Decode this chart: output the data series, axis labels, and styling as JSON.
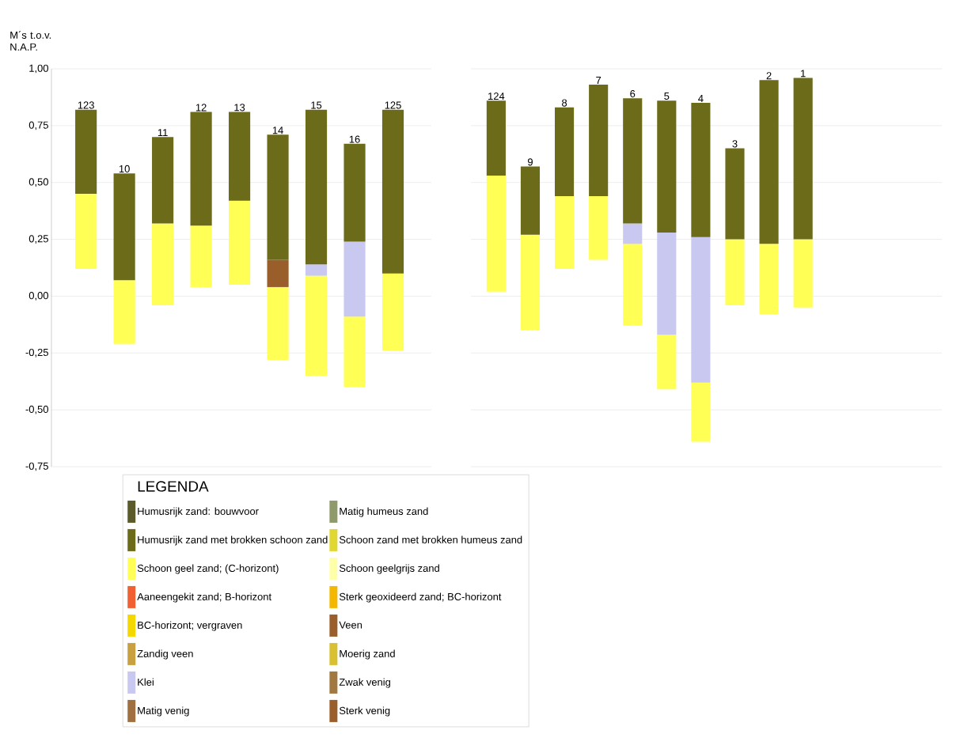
{
  "chart_data": [
    {
      "type": "bar",
      "ylabel": "M´s t.o.v. N.A.P.",
      "legend_title": "LEGENDA",
      "legend": "bottom",
      "grid": "y",
      "categories": [
        "123",
        "10",
        "11",
        "12",
        "13",
        "14",
        "15",
        "16",
        "125"
      ],
      "ylim": [
        -0.75,
        1.0
      ],
      "yticks": [
        {
          "value": 1.0,
          "label": "1,00"
        },
        {
          "value": 0.75,
          "label": "0,75"
        },
        {
          "value": 0.5,
          "label": "0,50"
        },
        {
          "value": 0.25,
          "label": "0,25"
        },
        {
          "value": 0.0,
          "label": "0,00"
        },
        {
          "value": -0.25,
          "label": "-0,25"
        },
        {
          "value": -0.5,
          "label": "-0,50"
        },
        {
          "value": -0.75,
          "label": "-0,75"
        }
      ],
      "series": [
        {
          "name": "Schoon geel zand; (C-horizont)",
          "color": "#ffff55",
          "base": [
            0.12,
            -0.21,
            -0.04,
            0.04,
            0.05,
            -0.28,
            -0.35,
            -0.4,
            -0.24
          ],
          "values": [
            0.33,
            0.28,
            0.36,
            0.27,
            0.37,
            0.32,
            0.44,
            0.31,
            0.34
          ]
        },
        {
          "name": "Klei",
          "color": "#c8c8f0",
          "base": [
            null,
            null,
            null,
            null,
            null,
            null,
            0.09,
            -0.09,
            null
          ],
          "values": [
            null,
            null,
            null,
            null,
            null,
            null,
            0.05,
            0.33,
            null
          ]
        },
        {
          "name": "Veen",
          "color": "#9a5e2a",
          "base": [
            null,
            null,
            null,
            null,
            null,
            0.04,
            null,
            null,
            null
          ],
          "values": [
            null,
            null,
            null,
            null,
            null,
            0.12,
            null,
            null,
            null
          ]
        },
        {
          "name": "Humusrijk zand met brokken schoon zand",
          "color": "#6b6b1a",
          "base": [
            0.45,
            0.07,
            0.32,
            0.31,
            0.42,
            0.16,
            0.14,
            0.24,
            0.1
          ],
          "values": [
            0.37,
            0.47,
            0.38,
            0.5,
            0.39,
            0.55,
            0.68,
            0.43,
            0.72
          ]
        },
        {
          "name": "Humusrijk zand: bouwvoor",
          "color": "#5a5a2a",
          "values": [
            null,
            null,
            null,
            null,
            null,
            null,
            null,
            null,
            null
          ]
        },
        {
          "name": "Matig humeus zand",
          "color": "#8f9a6a",
          "values": [
            null,
            null,
            null,
            null,
            null,
            null,
            null,
            null,
            null
          ]
        },
        {
          "name": "Schoon zand met brokken humeus zand",
          "color": "#e0d830",
          "values": [
            null,
            null,
            null,
            null,
            null,
            null,
            null,
            null,
            null
          ]
        },
        {
          "name": "Schoon geelgrijs zand",
          "color": "#ffffa8",
          "values": [
            null,
            null,
            null,
            null,
            null,
            null,
            null,
            null,
            null
          ]
        },
        {
          "name": "Aaneengekit zand; B-horizont",
          "color": "#f06030",
          "values": [
            null,
            null,
            null,
            null,
            null,
            null,
            null,
            null,
            null
          ]
        },
        {
          "name": "Sterk geoxideerd zand; BC-horizont",
          "color": "#f5b800",
          "values": [
            null,
            null,
            null,
            null,
            null,
            null,
            null,
            null,
            null
          ]
        },
        {
          "name": "BC-horizont; vergraven",
          "color": "#f5d800",
          "values": [
            null,
            null,
            null,
            null,
            null,
            null,
            null,
            null,
            null
          ]
        },
        {
          "name": "Zandig veen",
          "color": "#c8a040",
          "values": [
            null,
            null,
            null,
            null,
            null,
            null,
            null,
            null,
            null
          ]
        },
        {
          "name": "Moerig zand",
          "color": "#d8c030",
          "values": [
            null,
            null,
            null,
            null,
            null,
            null,
            null,
            null,
            null
          ]
        },
        {
          "name": "Zwak venig",
          "color": "#a07840",
          "values": [
            null,
            null,
            null,
            null,
            null,
            null,
            null,
            null,
            null
          ]
        },
        {
          "name": "Matig venig",
          "color": "#a07040",
          "values": [
            null,
            null,
            null,
            null,
            null,
            null,
            null,
            null,
            null
          ]
        },
        {
          "name": "Sterk venig",
          "color": "#9a5e2a",
          "values": [
            null,
            null,
            null,
            null,
            null,
            null,
            null,
            null,
            null
          ]
        }
      ]
    },
    {
      "type": "bar",
      "grid": "y",
      "tick_labels": "x",
      "categories": [
        "124",
        "9",
        "8",
        "7",
        "6",
        "5",
        "4",
        "3",
        "2",
        "1"
      ],
      "ylim": [
        -0.75,
        1.0
      ],
      "yticks": [
        1.0,
        0.75,
        0.5,
        0.25,
        0.0,
        -0.25,
        -0.5,
        -0.75
      ],
      "series": [
        {
          "color": "#ffff55",
          "base": [
            0.02,
            -0.15,
            0.12,
            0.16,
            -0.13,
            -0.41,
            -0.64,
            -0.04,
            -0.08,
            -0.05
          ],
          "values": [
            0.51,
            0.42,
            0.32,
            0.28,
            0.36,
            0.24,
            0.26,
            0.29,
            0.31,
            0.3
          ]
        },
        {
          "color": "#c8c8f0",
          "base": [
            null,
            null,
            null,
            null,
            0.23,
            -0.17,
            -0.38,
            null,
            null,
            null
          ],
          "values": [
            null,
            null,
            null,
            null,
            0.09,
            0.45,
            0.64,
            null,
            null,
            null
          ]
        },
        {
          "color": "#6b6b1a",
          "base": [
            0.53,
            0.27,
            0.44,
            0.44,
            0.32,
            0.28,
            0.26,
            0.25,
            0.23,
            0.25
          ],
          "values": [
            0.33,
            0.3,
            0.39,
            0.49,
            0.55,
            0.58,
            0.59,
            0.4,
            0.72,
            0.71
          ]
        }
      ]
    }
  ]
}
